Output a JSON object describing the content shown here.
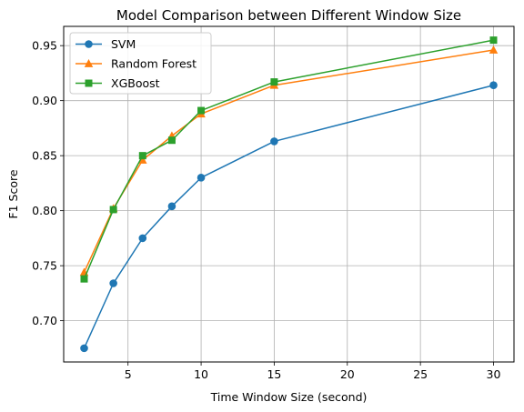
{
  "chart_data": {
    "type": "line",
    "title": "Model Comparison between Different Window Size",
    "xlabel": "Time Window Size (second)",
    "ylabel": "F1 Score",
    "x": [
      2,
      4,
      6,
      8,
      10,
      15,
      30
    ],
    "xlim": [
      0.6,
      31.4
    ],
    "ylim": [
      0.6625,
      0.9675
    ],
    "xticks": [
      5,
      10,
      15,
      20,
      25,
      30
    ],
    "yticks": [
      0.7,
      0.75,
      0.8,
      0.85,
      0.9,
      0.95
    ],
    "xtick_labels": [
      "5",
      "10",
      "15",
      "20",
      "25",
      "30"
    ],
    "ytick_labels": [
      "0.70",
      "0.75",
      "0.80",
      "0.85",
      "0.90",
      "0.95"
    ],
    "grid": true,
    "legend_position": "upper-left",
    "series": [
      {
        "name": "SVM",
        "marker": "circle",
        "color": "#1f77b4",
        "values": [
          0.675,
          0.734,
          0.775,
          0.804,
          0.83,
          0.863,
          0.914
        ]
      },
      {
        "name": "Random Forest",
        "marker": "triangle",
        "color": "#ff7f0e",
        "values": [
          0.744,
          0.802,
          0.846,
          0.868,
          0.888,
          0.914,
          0.946
        ]
      },
      {
        "name": "XGBoost",
        "marker": "square",
        "color": "#2ca02c",
        "values": [
          0.738,
          0.801,
          0.85,
          0.864,
          0.891,
          0.917,
          0.955
        ]
      }
    ]
  }
}
